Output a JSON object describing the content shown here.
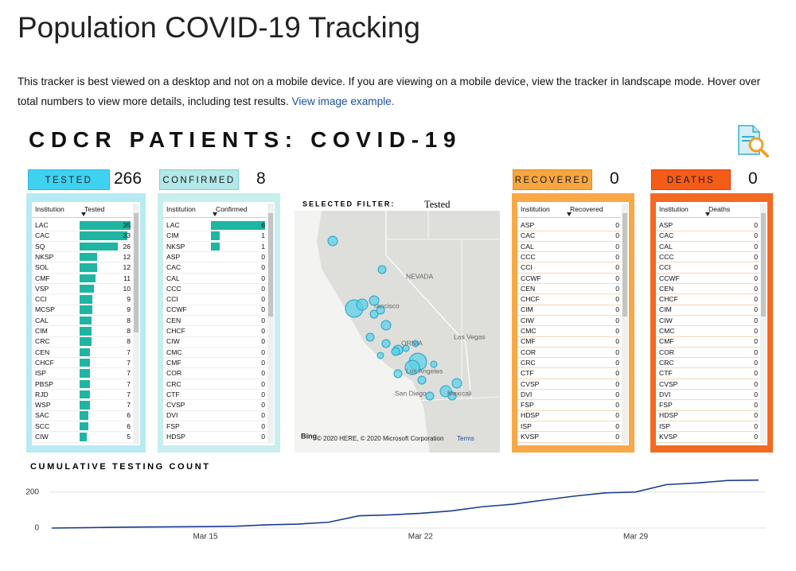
{
  "title": "Population COVID-19 Tracking",
  "intro": {
    "text": "This tracker is best viewed on a desktop and not on a mobile device. If you are viewing on a mobile device, view the tracker in landscape mode. Hover over total numbers to view more details, including test results.",
    "link": "View image example."
  },
  "dashboard": {
    "title": "CDCR PATIENTS: COVID-19",
    "panels": [
      {
        "label": "TESTED",
        "total": 266,
        "columns": [
          "Institution",
          "Tested"
        ],
        "rows": [
          [
            "LAC",
            35
          ],
          [
            "CAC",
            33
          ],
          [
            "SQ",
            26
          ],
          [
            "NKSP",
            12
          ],
          [
            "SOL",
            12
          ],
          [
            "CMF",
            11
          ],
          [
            "VSP",
            10
          ],
          [
            "CCI",
            9
          ],
          [
            "MCSP",
            9
          ],
          [
            "CAL",
            8
          ],
          [
            "CIM",
            8
          ],
          [
            "CRC",
            8
          ],
          [
            "CEN",
            7
          ],
          [
            "CHCF",
            7
          ],
          [
            "ISP",
            7
          ],
          [
            "PBSP",
            7
          ],
          [
            "RJD",
            7
          ],
          [
            "WSP",
            7
          ],
          [
            "SAC",
            6
          ],
          [
            "SCC",
            6
          ],
          [
            "CIW",
            5
          ]
        ]
      },
      {
        "label": "CONFIRMED",
        "total": 8,
        "columns": [
          "Institution",
          "Confirmed"
        ],
        "rows": [
          [
            "LAC",
            6
          ],
          [
            "CIM",
            1
          ],
          [
            "NKSP",
            1
          ],
          [
            "ASP",
            0
          ],
          [
            "CAC",
            0
          ],
          [
            "CAL",
            0
          ],
          [
            "CCC",
            0
          ],
          [
            "CCI",
            0
          ],
          [
            "CCWF",
            0
          ],
          [
            "CEN",
            0
          ],
          [
            "CHCF",
            0
          ],
          [
            "CIW",
            0
          ],
          [
            "CMC",
            0
          ],
          [
            "CMF",
            0
          ],
          [
            "COR",
            0
          ],
          [
            "CRC",
            0
          ],
          [
            "CTF",
            0
          ],
          [
            "CVSP",
            0
          ],
          [
            "DVI",
            0
          ],
          [
            "FSP",
            0
          ],
          [
            "HDSP",
            0
          ]
        ]
      },
      {
        "label": "RECOVERED",
        "total": 0,
        "columns": [
          "Institution",
          "Recovered"
        ],
        "rows": [
          [
            "ASP",
            0
          ],
          [
            "CAC",
            0
          ],
          [
            "CAL",
            0
          ],
          [
            "CCC",
            0
          ],
          [
            "CCI",
            0
          ],
          [
            "CCWF",
            0
          ],
          [
            "CEN",
            0
          ],
          [
            "CHCF",
            0
          ],
          [
            "CIM",
            0
          ],
          [
            "CIW",
            0
          ],
          [
            "CMC",
            0
          ],
          [
            "CMF",
            0
          ],
          [
            "COR",
            0
          ],
          [
            "CRC",
            0
          ],
          [
            "CTF",
            0
          ],
          [
            "CVSP",
            0
          ],
          [
            "DVI",
            0
          ],
          [
            "FSP",
            0
          ],
          [
            "HDSP",
            0
          ],
          [
            "ISP",
            0
          ],
          [
            "KVSP",
            0
          ]
        ]
      },
      {
        "label": "DEATHS",
        "total": 0,
        "columns": [
          "Institution",
          "Deaths"
        ],
        "rows": [
          [
            "ASP",
            0
          ],
          [
            "CAC",
            0
          ],
          [
            "CAL",
            0
          ],
          [
            "CCC",
            0
          ],
          [
            "CCI",
            0
          ],
          [
            "CCWF",
            0
          ],
          [
            "CEN",
            0
          ],
          [
            "CHCF",
            0
          ],
          [
            "CIM",
            0
          ],
          [
            "CIW",
            0
          ],
          [
            "CMC",
            0
          ],
          [
            "CMF",
            0
          ],
          [
            "COR",
            0
          ],
          [
            "CRC",
            0
          ],
          [
            "CTF",
            0
          ],
          [
            "CVSP",
            0
          ],
          [
            "DVI",
            0
          ],
          [
            "FSP",
            0
          ],
          [
            "HDSP",
            0
          ],
          [
            "ISP",
            0
          ],
          [
            "KVSP",
            0
          ]
        ]
      }
    ],
    "map": {
      "filter_label": "SELECTED FILTER:",
      "filter_value": "Tested",
      "labels": [
        "NEVADA",
        "Las Vegas",
        "Los Angeles",
        "San Diego",
        "Mexicali",
        "ORNIA",
        "rancisco"
      ],
      "logo": "Bing",
      "copyright": "© 2020 HERE, © 2020 Microsoft Corporation",
      "terms": "Terms"
    }
  },
  "chart_data": {
    "type": "line",
    "title": "CUMULATIVE TESTING COUNT",
    "categories": [
      null,
      null,
      null,
      null,
      null,
      "Mar 15",
      null,
      null,
      null,
      null,
      null,
      null,
      "Mar 22",
      null,
      null,
      null,
      null,
      null,
      null,
      "Mar 29",
      null,
      null,
      null,
      null
    ],
    "values": [
      0,
      2,
      4,
      6,
      7,
      8,
      10,
      18,
      22,
      32,
      68,
      73,
      82,
      95,
      118,
      132,
      155,
      177,
      195,
      200,
      241,
      250,
      264,
      266
    ],
    "color": "#1a3d8f",
    "ylim": [
      0,
      300
    ],
    "yticks": [
      0,
      200
    ],
    "grid": true
  }
}
